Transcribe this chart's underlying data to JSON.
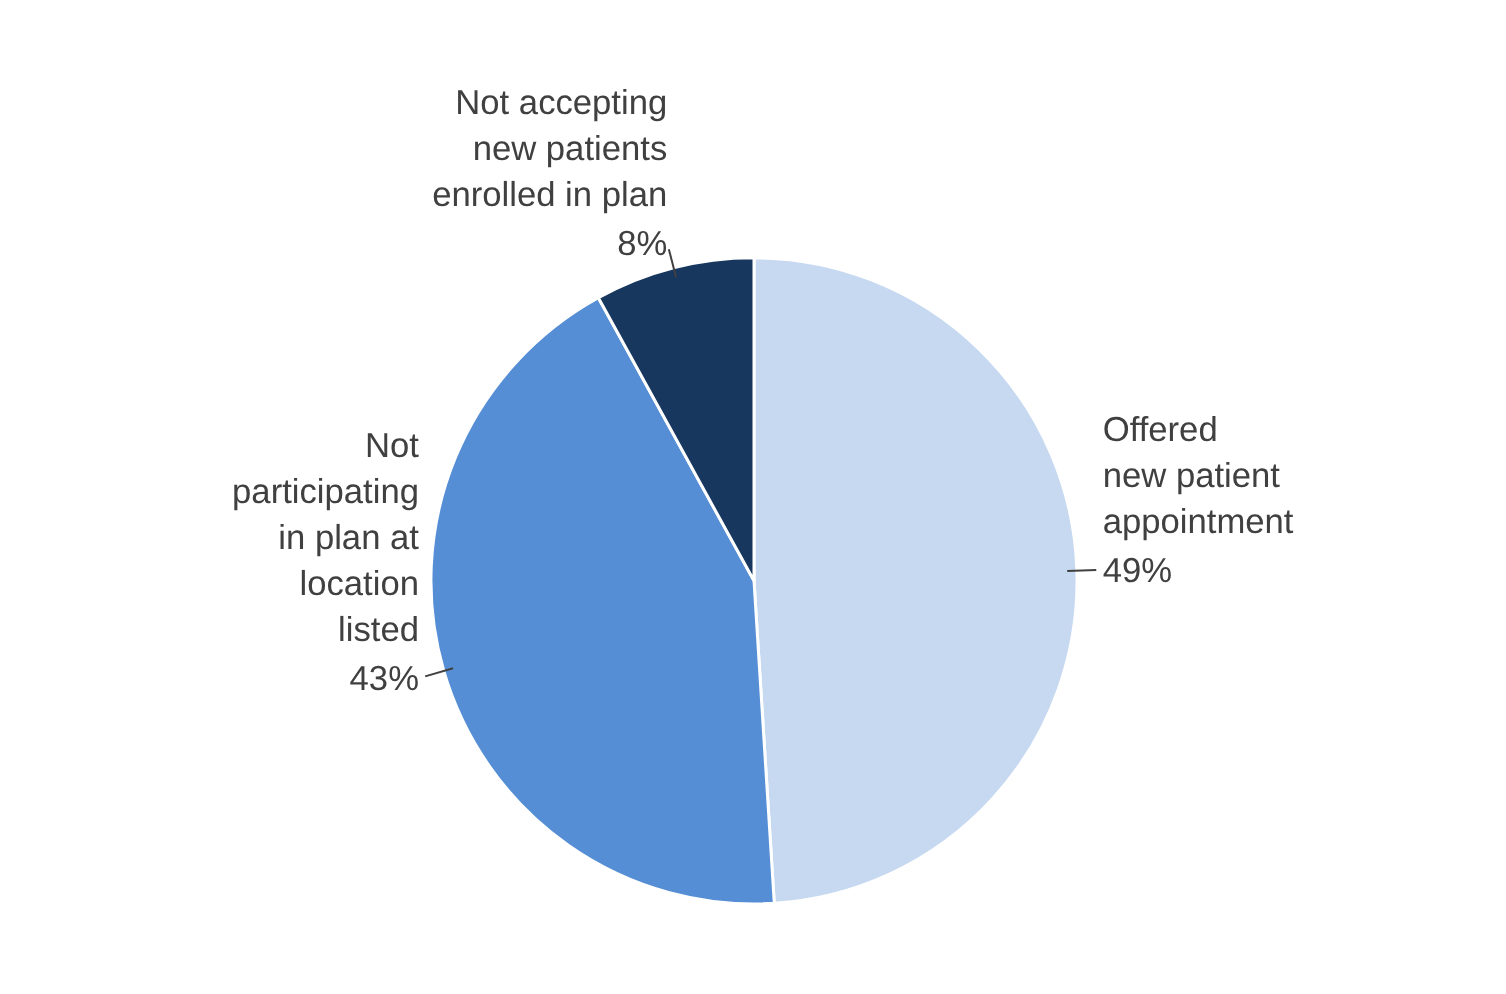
{
  "chart_data": {
    "type": "pie",
    "categories": [
      "Offered\nnew patient\nappointment",
      "Not\nparticipating\nin plan at\nlocation\nlisted",
      "Not accepting\nnew patients\nenrolled in plan"
    ],
    "values": [
      49,
      43,
      8
    ],
    "colors": [
      "#c6d9f1",
      "#558ed5",
      "#17375e"
    ],
    "value_labels": [
      "49%",
      "43%",
      "8%"
    ]
  }
}
